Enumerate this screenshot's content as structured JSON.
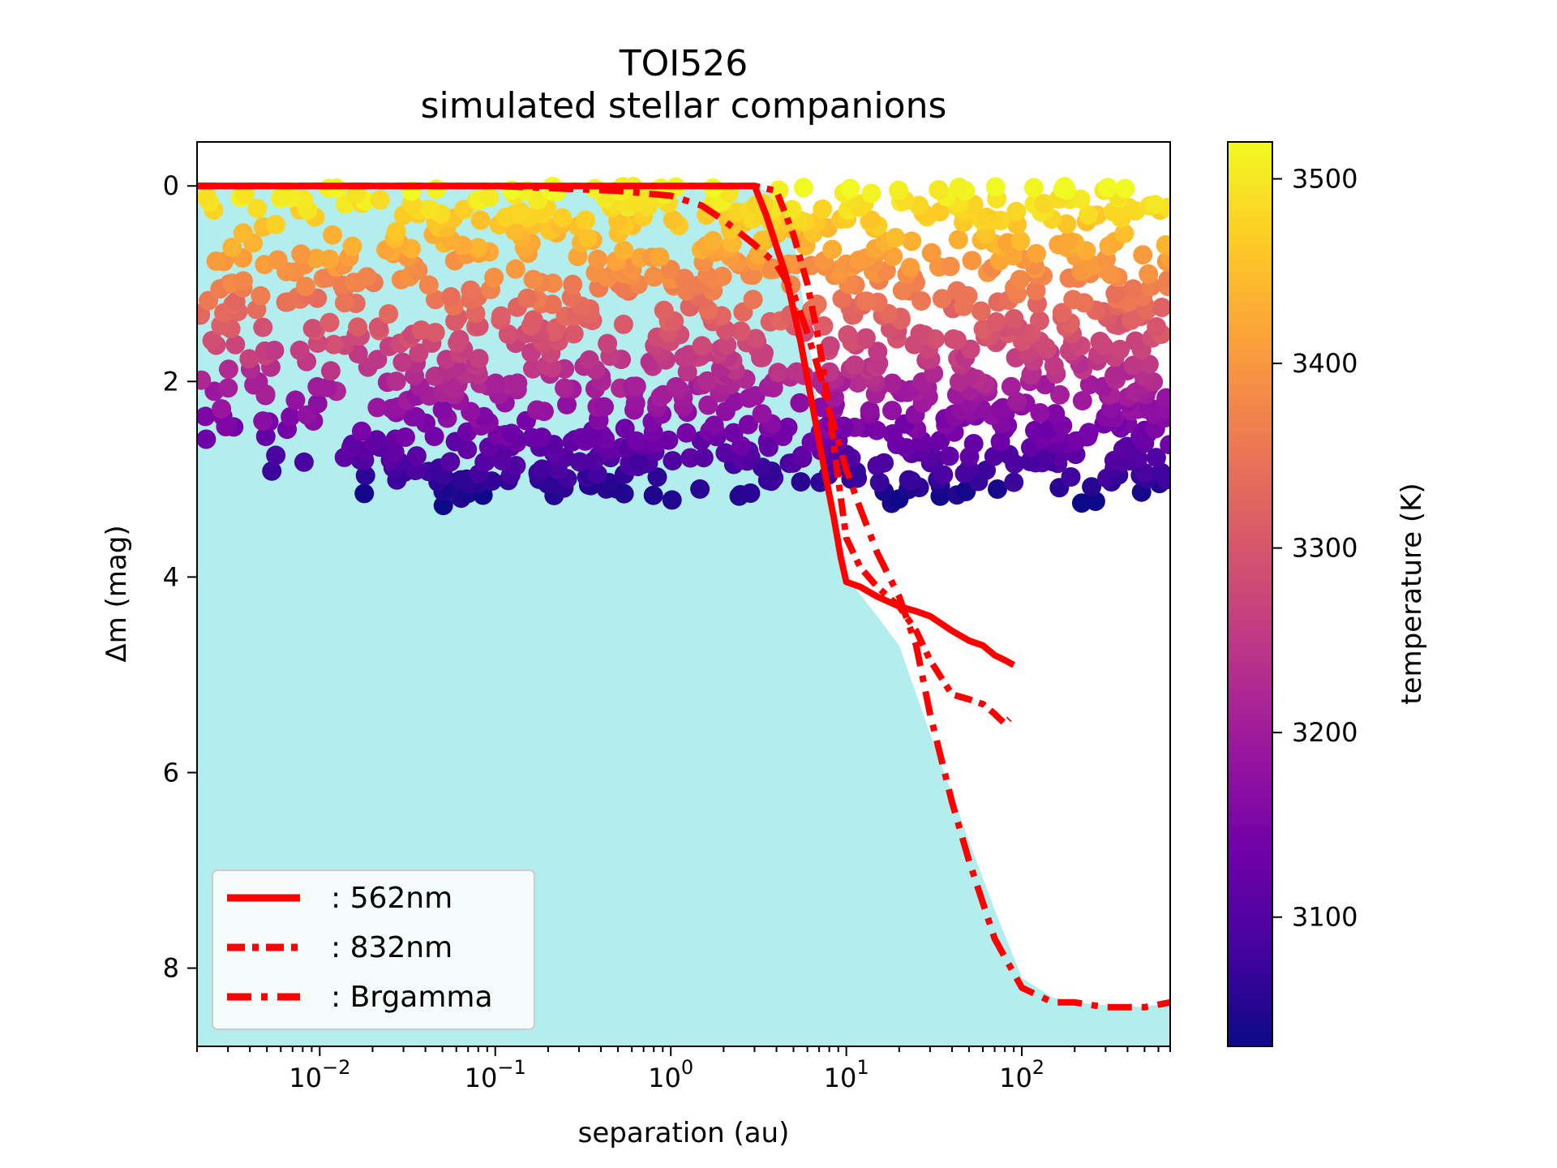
{
  "chart_data": {
    "type": "scatter",
    "title": "TOI526",
    "subtitle": "simulated stellar companions",
    "xlabel": "separation (au)",
    "ylabel": "Δm (mag)",
    "xscale": "log",
    "xlim": [
      0.002,
      700
    ],
    "ylim": [
      8.8,
      -0.45
    ],
    "x_ticks": [
      {
        "value": 0.01,
        "base": "10",
        "exp": "−2"
      },
      {
        "value": 0.1,
        "base": "10",
        "exp": "−1"
      },
      {
        "value": 1,
        "base": "10",
        "exp": "0"
      },
      {
        "value": 10,
        "base": "10",
        "exp": "1"
      },
      {
        "value": 100,
        "base": "10",
        "exp": "2"
      }
    ],
    "y_ticks": [
      {
        "value": 0,
        "label": "0"
      },
      {
        "value": 2,
        "label": "2"
      },
      {
        "value": 4,
        "label": "4"
      },
      {
        "value": 6,
        "label": "6"
      },
      {
        "value": 8,
        "label": "8"
      }
    ],
    "colorbar": {
      "label": "temperature (K)",
      "range": [
        3030,
        3520
      ],
      "ticks": [
        {
          "value": 3100,
          "label": "3100"
        },
        {
          "value": 3200,
          "label": "3200"
        },
        {
          "value": 3300,
          "label": "3300"
        },
        {
          "value": 3400,
          "label": "3400"
        },
        {
          "value": 3500,
          "label": "3500"
        }
      ],
      "colormap": "plasma",
      "colormap_stops": [
        "#0d0887",
        "#46039f",
        "#7201a8",
        "#9c179e",
        "#bd3786",
        "#d8576b",
        "#ed7953",
        "#fb9f3a",
        "#fdca26",
        "#f0f921"
      ]
    },
    "background_region": {
      "description": "detectable region",
      "color": "#b2eeee",
      "boundary_x": [
        0.002,
        3,
        4,
        5,
        6,
        7,
        8,
        9,
        10,
        15,
        20,
        30,
        50,
        70,
        100,
        150,
        200,
        300,
        500,
        700
      ],
      "boundary_y": [
        0,
        0,
        0.1,
        0.5,
        1.5,
        2.3,
        3.0,
        3.5,
        4.0,
        4.4,
        4.7,
        5.6,
        6.7,
        7.4,
        8.1,
        8.3,
        8.35,
        8.38,
        8.4,
        8.35
      ]
    },
    "series": [
      {
        "name": ": 562nm",
        "style": "solid",
        "color": "#ff0000",
        "x": [
          0.002,
          0.1,
          1,
          3.0,
          3.5,
          4.5,
          5.5,
          6.5,
          7.5,
          8.5,
          9.3,
          10,
          12,
          15,
          20,
          25,
          30,
          40,
          50,
          60,
          70,
          80,
          90
        ],
        "y": [
          0,
          0,
          0,
          0,
          0.3,
          0.9,
          1.6,
          2.3,
          2.9,
          3.4,
          3.8,
          4.05,
          4.1,
          4.2,
          4.3,
          4.35,
          4.4,
          4.55,
          4.65,
          4.7,
          4.8,
          4.85,
          4.9
        ]
      },
      {
        "name": ": 832nm",
        "style": "dashed",
        "color": "#ff0000",
        "x": [
          0.002,
          0.1,
          1,
          3.0,
          4.0,
          5,
          6,
          7,
          8,
          9,
          10,
          12,
          15,
          20,
          25,
          30,
          40,
          50,
          60,
          70,
          80,
          85
        ],
        "y": [
          0,
          0,
          0,
          0,
          0.05,
          0.5,
          1.0,
          1.6,
          2.3,
          3.0,
          3.6,
          3.9,
          4.1,
          4.3,
          4.55,
          4.85,
          5.2,
          5.25,
          5.3,
          5.4,
          5.5,
          5.45
        ]
      },
      {
        "name": ": Brgamma",
        "style": "dashdot",
        "color": "#ff0000",
        "x": [
          0.002,
          0.1,
          0.5,
          1,
          1.5,
          2,
          3,
          4,
          5,
          6,
          7,
          8,
          10,
          12,
          15,
          20,
          25,
          30,
          40,
          50,
          70,
          100,
          150,
          200,
          300,
          500,
          700
        ],
        "y": [
          0,
          0,
          0.05,
          0.1,
          0.2,
          0.35,
          0.6,
          0.8,
          1.1,
          1.5,
          1.9,
          2.3,
          2.9,
          3.3,
          3.75,
          4.2,
          4.7,
          5.4,
          6.3,
          6.9,
          7.7,
          8.2,
          8.35,
          8.35,
          8.4,
          8.4,
          8.35
        ]
      }
    ],
    "scatter_points": {
      "description": "simulated stellar companions colored by temperature",
      "count": 1400,
      "x_range": [
        0.002,
        700
      ],
      "y_range": [
        -0.05,
        3.3
      ],
      "color_rule": "temperature decreases with Δm: about 3520 K at Δm 0, about 3030 K at Δm 3.2"
    },
    "legend": {
      "location": "lower left",
      "entries": [
        ": 562nm",
        ": 832nm",
        ": Brgamma"
      ]
    }
  }
}
